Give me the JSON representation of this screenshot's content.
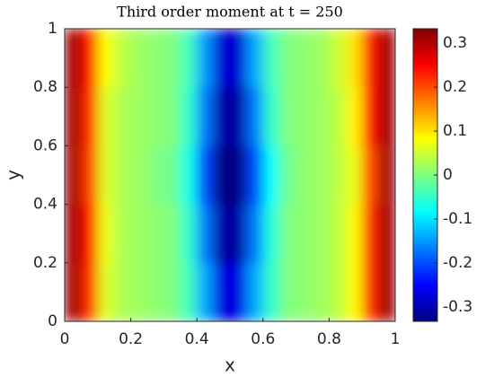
{
  "chart_data": {
    "type": "heatmap",
    "title": "Third order moment at t = 250",
    "x_label": "x",
    "y_label": "y",
    "x": [
      0.025,
      0.075,
      0.125,
      0.175,
      0.225,
      0.275,
      0.325,
      0.375,
      0.425,
      0.475,
      0.525,
      0.575,
      0.625,
      0.675,
      0.725,
      0.775,
      0.825,
      0.875,
      0.925,
      0.975
    ],
    "y": [
      0.1,
      0.3,
      0.5,
      0.7,
      0.9
    ],
    "z": [
      [
        0.31,
        0.22,
        0.06,
        0.03,
        0.02,
        0.01,
        0.0,
        -0.04,
        -0.14,
        -0.27,
        -0.27,
        -0.14,
        -0.05,
        0.0,
        0.01,
        0.02,
        0.04,
        0.08,
        0.22,
        0.31
      ],
      [
        0.31,
        0.23,
        0.07,
        0.03,
        0.02,
        0.01,
        0.0,
        -0.05,
        -0.17,
        -0.31,
        -0.31,
        -0.17,
        -0.06,
        0.0,
        0.01,
        0.02,
        0.04,
        0.08,
        0.22,
        0.31
      ],
      [
        0.31,
        0.21,
        0.06,
        0.03,
        0.02,
        0.0,
        -0.01,
        -0.07,
        -0.2,
        -0.33,
        -0.33,
        -0.2,
        -0.08,
        -0.01,
        0.01,
        0.02,
        0.04,
        0.07,
        0.2,
        0.31
      ],
      [
        0.31,
        0.22,
        0.06,
        0.03,
        0.02,
        0.01,
        0.0,
        -0.05,
        -0.17,
        -0.31,
        -0.31,
        -0.17,
        -0.05,
        0.0,
        0.01,
        0.02,
        0.04,
        0.09,
        0.23,
        0.31
      ],
      [
        0.31,
        0.23,
        0.08,
        0.04,
        0.02,
        0.01,
        0.0,
        -0.04,
        -0.15,
        -0.28,
        -0.28,
        -0.14,
        -0.04,
        0.0,
        0.01,
        0.02,
        0.05,
        0.1,
        0.23,
        0.31
      ]
    ],
    "xlim": [
      0,
      1
    ],
    "ylim": [
      0,
      1
    ],
    "xticks": [
      0,
      0.2,
      0.4,
      0.6,
      0.8,
      1
    ],
    "yticks": [
      0,
      0.2,
      0.4,
      0.6,
      0.8,
      1
    ],
    "colormap": "jet",
    "clim": [
      -0.333,
      0.333
    ],
    "cticks": [
      -0.3,
      -0.2,
      -0.1,
      0,
      0.1,
      0.2,
      0.3
    ]
  }
}
